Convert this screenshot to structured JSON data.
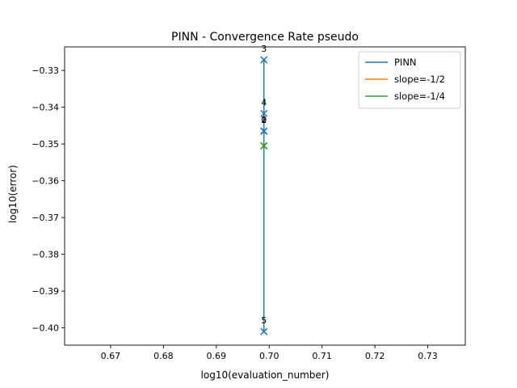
{
  "chart_data": {
    "type": "line",
    "title": "PINN - Convergence Rate pseudo",
    "xlabel": "log10(evaluation_number)",
    "ylabel": "log10(error)",
    "xlim": [
      0.6613,
      0.7371
    ],
    "ylim": [
      -0.4047,
      -0.3236
    ],
    "xticks": [
      0.67,
      0.68,
      0.69,
      0.7,
      0.71,
      0.72,
      0.73
    ],
    "xtick_labels": [
      "0.67",
      "0.68",
      "0.69",
      "0.70",
      "0.71",
      "0.72",
      "0.73"
    ],
    "yticks": [
      -0.33,
      -0.34,
      -0.35,
      -0.36,
      -0.37,
      -0.38,
      -0.39,
      -0.4
    ],
    "ytick_labels": [
      "−0.33",
      "−0.34",
      "−0.35",
      "−0.36",
      "−0.37",
      "−0.38",
      "−0.39",
      "−0.40"
    ],
    "grid": false,
    "legend_position": "top-right",
    "series": [
      {
        "name": "PINN",
        "color": "#1f77b4",
        "marker": "x",
        "x": [
          0.699,
          0.699,
          0.699,
          0.699,
          0.699,
          0.699
        ],
        "y": [
          -0.3465,
          -0.3465,
          -0.3271,
          -0.3417,
          -0.401,
          -0.3465
        ],
        "labels": [
          "0",
          "1",
          "3",
          "4",
          "5",
          "2"
        ]
      },
      {
        "name": "slope=-1/2",
        "color": "#ff7f0e",
        "marker": "x",
        "x": [
          0.699,
          0.699
        ],
        "y": [
          -0.3505,
          -0.3505
        ]
      },
      {
        "name": "slope=-1/4",
        "color": "#2ca02c",
        "marker": "x",
        "x": [
          0.699,
          0.699
        ],
        "y": [
          -0.3505,
          -0.3505
        ]
      }
    ]
  }
}
